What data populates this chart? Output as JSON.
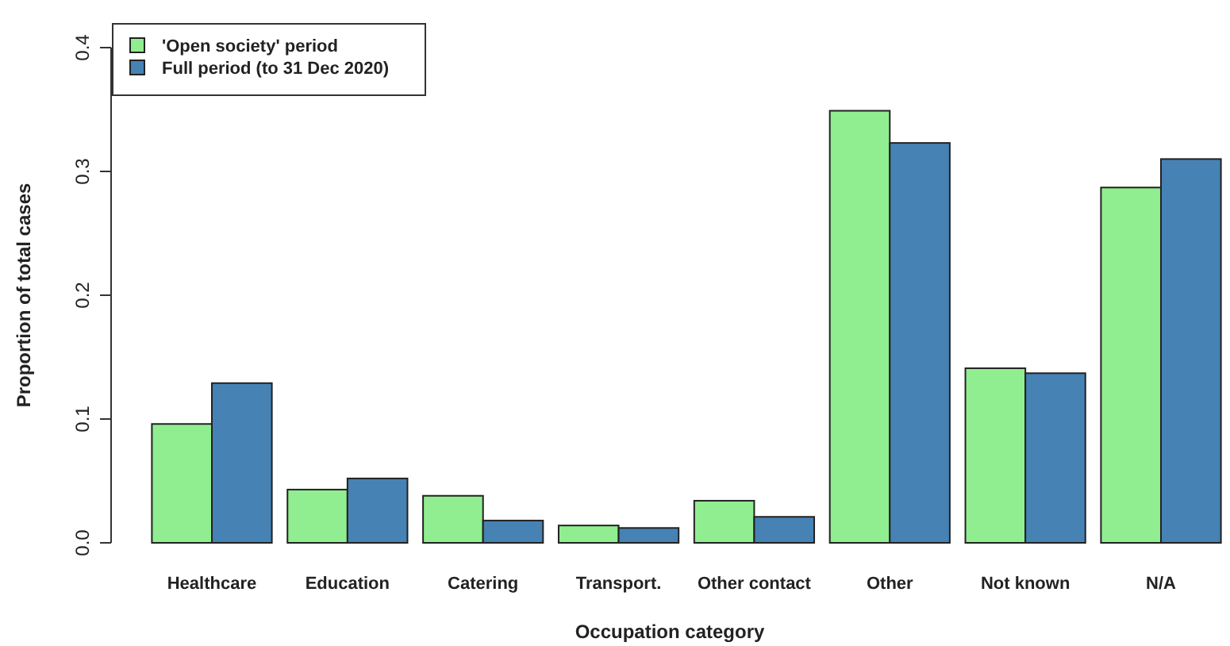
{
  "chart_data": {
    "type": "bar",
    "xlabel": "Occupation category",
    "ylabel": "Proportion of total cases",
    "categories": [
      "Healthcare",
      "Education",
      "Catering",
      "Transport.",
      "Other contact",
      "Other",
      "Not known",
      "N/A"
    ],
    "series": [
      {
        "name": "'Open society' period",
        "color": "#90ee90",
        "values": [
          0.096,
          0.043,
          0.038,
          0.014,
          0.034,
          0.349,
          0.141,
          0.287
        ]
      },
      {
        "name": "Full period (to 31 Dec 2020)",
        "color": "#4682b4",
        "values": [
          0.129,
          0.052,
          0.018,
          0.012,
          0.021,
          0.323,
          0.137,
          0.31
        ]
      }
    ],
    "ylim": [
      0,
      0.4
    ],
    "yticks": [
      {
        "value": 0,
        "label": "0.0"
      },
      {
        "value": 0.1,
        "label": "0.1"
      },
      {
        "value": 0.2,
        "label": "0.2"
      },
      {
        "value": 0.3,
        "label": "0.3"
      },
      {
        "value": 0.4,
        "label": "0.4"
      }
    ],
    "grid": false,
    "legend": "top left"
  }
}
